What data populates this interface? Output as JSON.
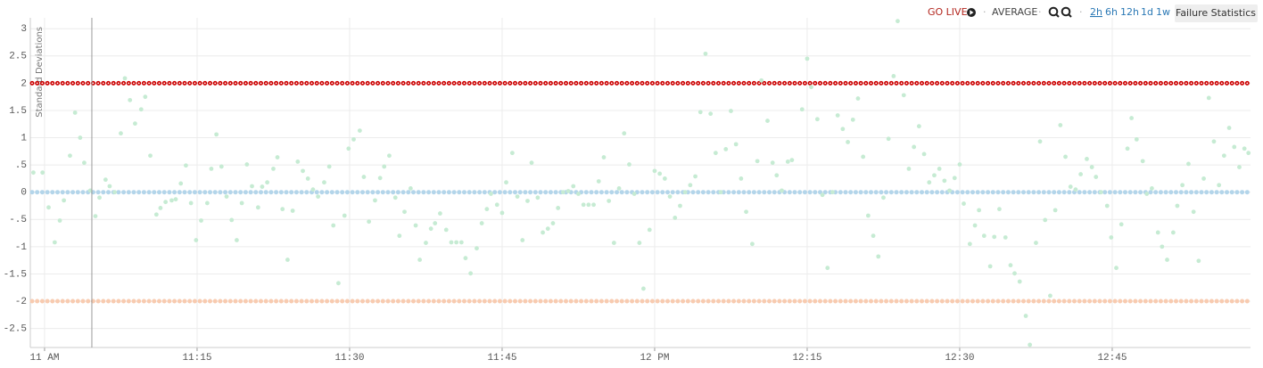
{
  "toolbar": {
    "go_live": "GO LIVE",
    "average": "AVERAGE",
    "ranges": [
      "2h",
      "6h",
      "12h",
      "1d",
      "1w"
    ],
    "button": "Failure Statistics"
  },
  "chart_data": {
    "type": "scatter",
    "ylabel": "Standard Deviations",
    "point_color": "#c6ebd3",
    "grid": true,
    "xlim": [
      -1.4,
      118.6
    ],
    "ylim": [
      -2.85,
      3.2
    ],
    "xticks": [
      {
        "value": 0,
        "label": "11 AM"
      },
      {
        "value": 15,
        "label": "11:15"
      },
      {
        "value": 30,
        "label": "11:30"
      },
      {
        "value": 45,
        "label": "11:45"
      },
      {
        "value": 60,
        "label": "12 PM"
      },
      {
        "value": 75,
        "label": "12:15"
      },
      {
        "value": 90,
        "label": "12:30"
      },
      {
        "value": 105,
        "label": "12:45"
      }
    ],
    "yticks": [
      3,
      2.5,
      2,
      1.5,
      1,
      {
        "value": 0.5,
        "label": ".5"
      },
      0,
      {
        "value": -0.5,
        "label": "-.5"
      },
      -1,
      -1.5,
      -2,
      -2.5
    ],
    "reference_lines": [
      {
        "value": 2,
        "color": "#cc0000"
      },
      {
        "value": 0,
        "color": "#b3d5ea"
      },
      {
        "value": -2,
        "color": "#f8cbb0"
      }
    ],
    "cursor_x": 4.65,
    "x": [
      -1.1,
      -0.2,
      0.4,
      1.0,
      1.5,
      1.9,
      2.5,
      3.0,
      3.5,
      3.9,
      4.5,
      5.0,
      5.4,
      6.0,
      6.4,
      6.9,
      7.5,
      7.9,
      8.4,
      8.9,
      9.5,
      9.9,
      10.4,
      11.0,
      11.4,
      11.9,
      12.5,
      12.9,
      13.4,
      13.9,
      14.4,
      14.9,
      15.4,
      16.0,
      16.4,
      16.9,
      17.4,
      17.9,
      18.4,
      18.9,
      19.4,
      19.9,
      20.4,
      21.0,
      21.4,
      21.9,
      22.5,
      22.9,
      23.4,
      23.9,
      24.4,
      24.9,
      25.4,
      25.9,
      26.4,
      26.9,
      27.5,
      28.0,
      28.4,
      28.9,
      29.5,
      29.9,
      30.4,
      31.0,
      31.4,
      31.9,
      32.5,
      33.0,
      33.4,
      33.9,
      34.5,
      34.9,
      35.4,
      36.0,
      36.5,
      36.9,
      37.5,
      38.0,
      38.4,
      38.9,
      39.5,
      40.0,
      40.5,
      41.0,
      41.4,
      41.9,
      42.5,
      43.0,
      43.5,
      43.9,
      44.5,
      45.0,
      45.4,
      46.0,
      46.5,
      47.0,
      47.5,
      47.9,
      48.5,
      49.0,
      49.5,
      50.0,
      50.5,
      51.0,
      51.5,
      52.0,
      52.5,
      53.0,
      53.5,
      54.0,
      54.5,
      55.0,
      55.5,
      56.0,
      56.5,
      57.0,
      57.5,
      58.0,
      58.5,
      58.9,
      59.5,
      60.0,
      60.5,
      61.0,
      61.5,
      62.0,
      62.5,
      63.0,
      63.5,
      64.0,
      64.5,
      65.0,
      65.5,
      66.0,
      66.5,
      67.0,
      67.5,
      68.0,
      68.5,
      69.0,
      69.6,
      70.1,
      70.5,
      71.1,
      71.6,
      72.0,
      72.5,
      73.1,
      73.5,
      74.5,
      75.0,
      75.4,
      76.0,
      76.5,
      77.0,
      77.5,
      78.0,
      78.5,
      79.0,
      79.5,
      80.0,
      80.5,
      81.0,
      81.5,
      82.0,
      82.5,
      83.0,
      83.5,
      83.9,
      84.5,
      85.0,
      85.5,
      86.0,
      86.5,
      87.0,
      87.5,
      88.0,
      88.5,
      89.0,
      89.5,
      90.0,
      90.4,
      91.0,
      91.5,
      91.9,
      92.4,
      93.0,
      93.4,
      93.9,
      94.5,
      95.0,
      95.4,
      95.9,
      96.5,
      96.9,
      97.5,
      97.9,
      98.4,
      98.9,
      99.4,
      99.9,
      100.4,
      100.9,
      101.4,
      101.9,
      102.5,
      103.0,
      103.4,
      103.9,
      104.5,
      104.9,
      105.4,
      105.9,
      106.5,
      106.9,
      107.4,
      108.0,
      108.4,
      108.9,
      109.5,
      109.9,
      110.4,
      111.0,
      111.4,
      111.9,
      112.5,
      113.0,
      113.5,
      114.0,
      114.5,
      115.0,
      115.5,
      116.0,
      116.5,
      117.0,
      117.5,
      118.0,
      118.4
    ],
    "values": [
      0.36,
      0.36,
      -0.28,
      -0.92,
      -0.52,
      -0.15,
      0.67,
      1.46,
      1.0,
      0.54,
      0.03,
      -0.44,
      -0.1,
      0.23,
      0.11,
      0,
      1.08,
      2.09,
      1.69,
      1.26,
      1.52,
      1.75,
      0.67,
      -0.41,
      -0.29,
      -0.18,
      -0.15,
      -0.13,
      0.16,
      0.49,
      -0.2,
      -0.88,
      -0.52,
      -0.2,
      0.43,
      1.06,
      0.47,
      -0.08,
      -0.51,
      -0.88,
      -0.2,
      0.51,
      0.11,
      -0.28,
      0.1,
      0.18,
      0.43,
      0.64,
      -0.31,
      -1.24,
      -0.34,
      0.56,
      0.39,
      0.25,
      0.05,
      -0.08,
      0.18,
      0.47,
      -0.61,
      -1.67,
      -0.43,
      0.8,
      0.97,
      1.13,
      0.28,
      -0.54,
      -0.15,
      0.26,
      0.47,
      0.67,
      -0.1,
      -0.8,
      -0.36,
      0.07,
      -0.61,
      -1.24,
      -0.93,
      -0.67,
      -0.57,
      -0.39,
      -0.69,
      -0.92,
      -0.92,
      -0.92,
      -1.21,
      -1.49,
      -1.03,
      -0.57,
      -0.31,
      -0.03,
      -0.23,
      -0.38,
      0.18,
      0.72,
      -0.08,
      -0.88,
      -0.16,
      0.54,
      -0.1,
      -0.74,
      -0.67,
      -0.57,
      -0.29,
      0,
      0.02,
      0.11,
      -0.03,
      -0.23,
      -0.23,
      -0.23,
      0.2,
      0.64,
      -0.16,
      -0.93,
      0.07,
      1.08,
      0.51,
      -0.03,
      -0.93,
      -1.77,
      -0.69,
      0.39,
      0.34,
      0.25,
      -0.08,
      -0.47,
      -0.25,
      0,
      0.13,
      0.29,
      1.47,
      2.54,
      1.44,
      0.72,
      0,
      0.79,
      1.49,
      0.88,
      0.25,
      -0.36,
      -0.95,
      0.57,
      2.05,
      1.31,
      0.54,
      0.31,
      0.03,
      0.56,
      0.59,
      1.52,
      2.45,
      1.93,
      1.34,
      -0.05,
      -1.39,
      0,
      1.41,
      1.16,
      0.92,
      1.33,
      1.72,
      0.65,
      -0.43,
      -0.8,
      -1.18,
      -0.1,
      0.98,
      2.13,
      3.14,
      1.78,
      0.43,
      0.83,
      1.21,
      0.7,
      0.18,
      0.31,
      0.43,
      0.21,
      0.03,
      0.26,
      0.51,
      -0.21,
      -0.95,
      -0.61,
      -0.33,
      -0.8,
      -1.36,
      -0.82,
      -0.31,
      -0.83,
      -1.34,
      -1.49,
      -1.64,
      -2.27,
      -2.8,
      -0.93,
      0.93,
      -0.51,
      -1.9,
      -0.33,
      1.23,
      0.65,
      0.1,
      0.05,
      0.33,
      0.61,
      0.46,
      0.28,
      0,
      -0.25,
      -0.83,
      -1.39,
      -0.59,
      0.8,
      1.36,
      0.97,
      0.57,
      -0.03,
      0.07,
      -0.74,
      -1.0,
      -1.24,
      -0.74,
      -0.25,
      0.13,
      0.52,
      -0.36,
      -1.26,
      0.25,
      1.73,
      0.93,
      0.13,
      0.67,
      1.18,
      0.83,
      0.46,
      0.8,
      0.72
    ]
  }
}
